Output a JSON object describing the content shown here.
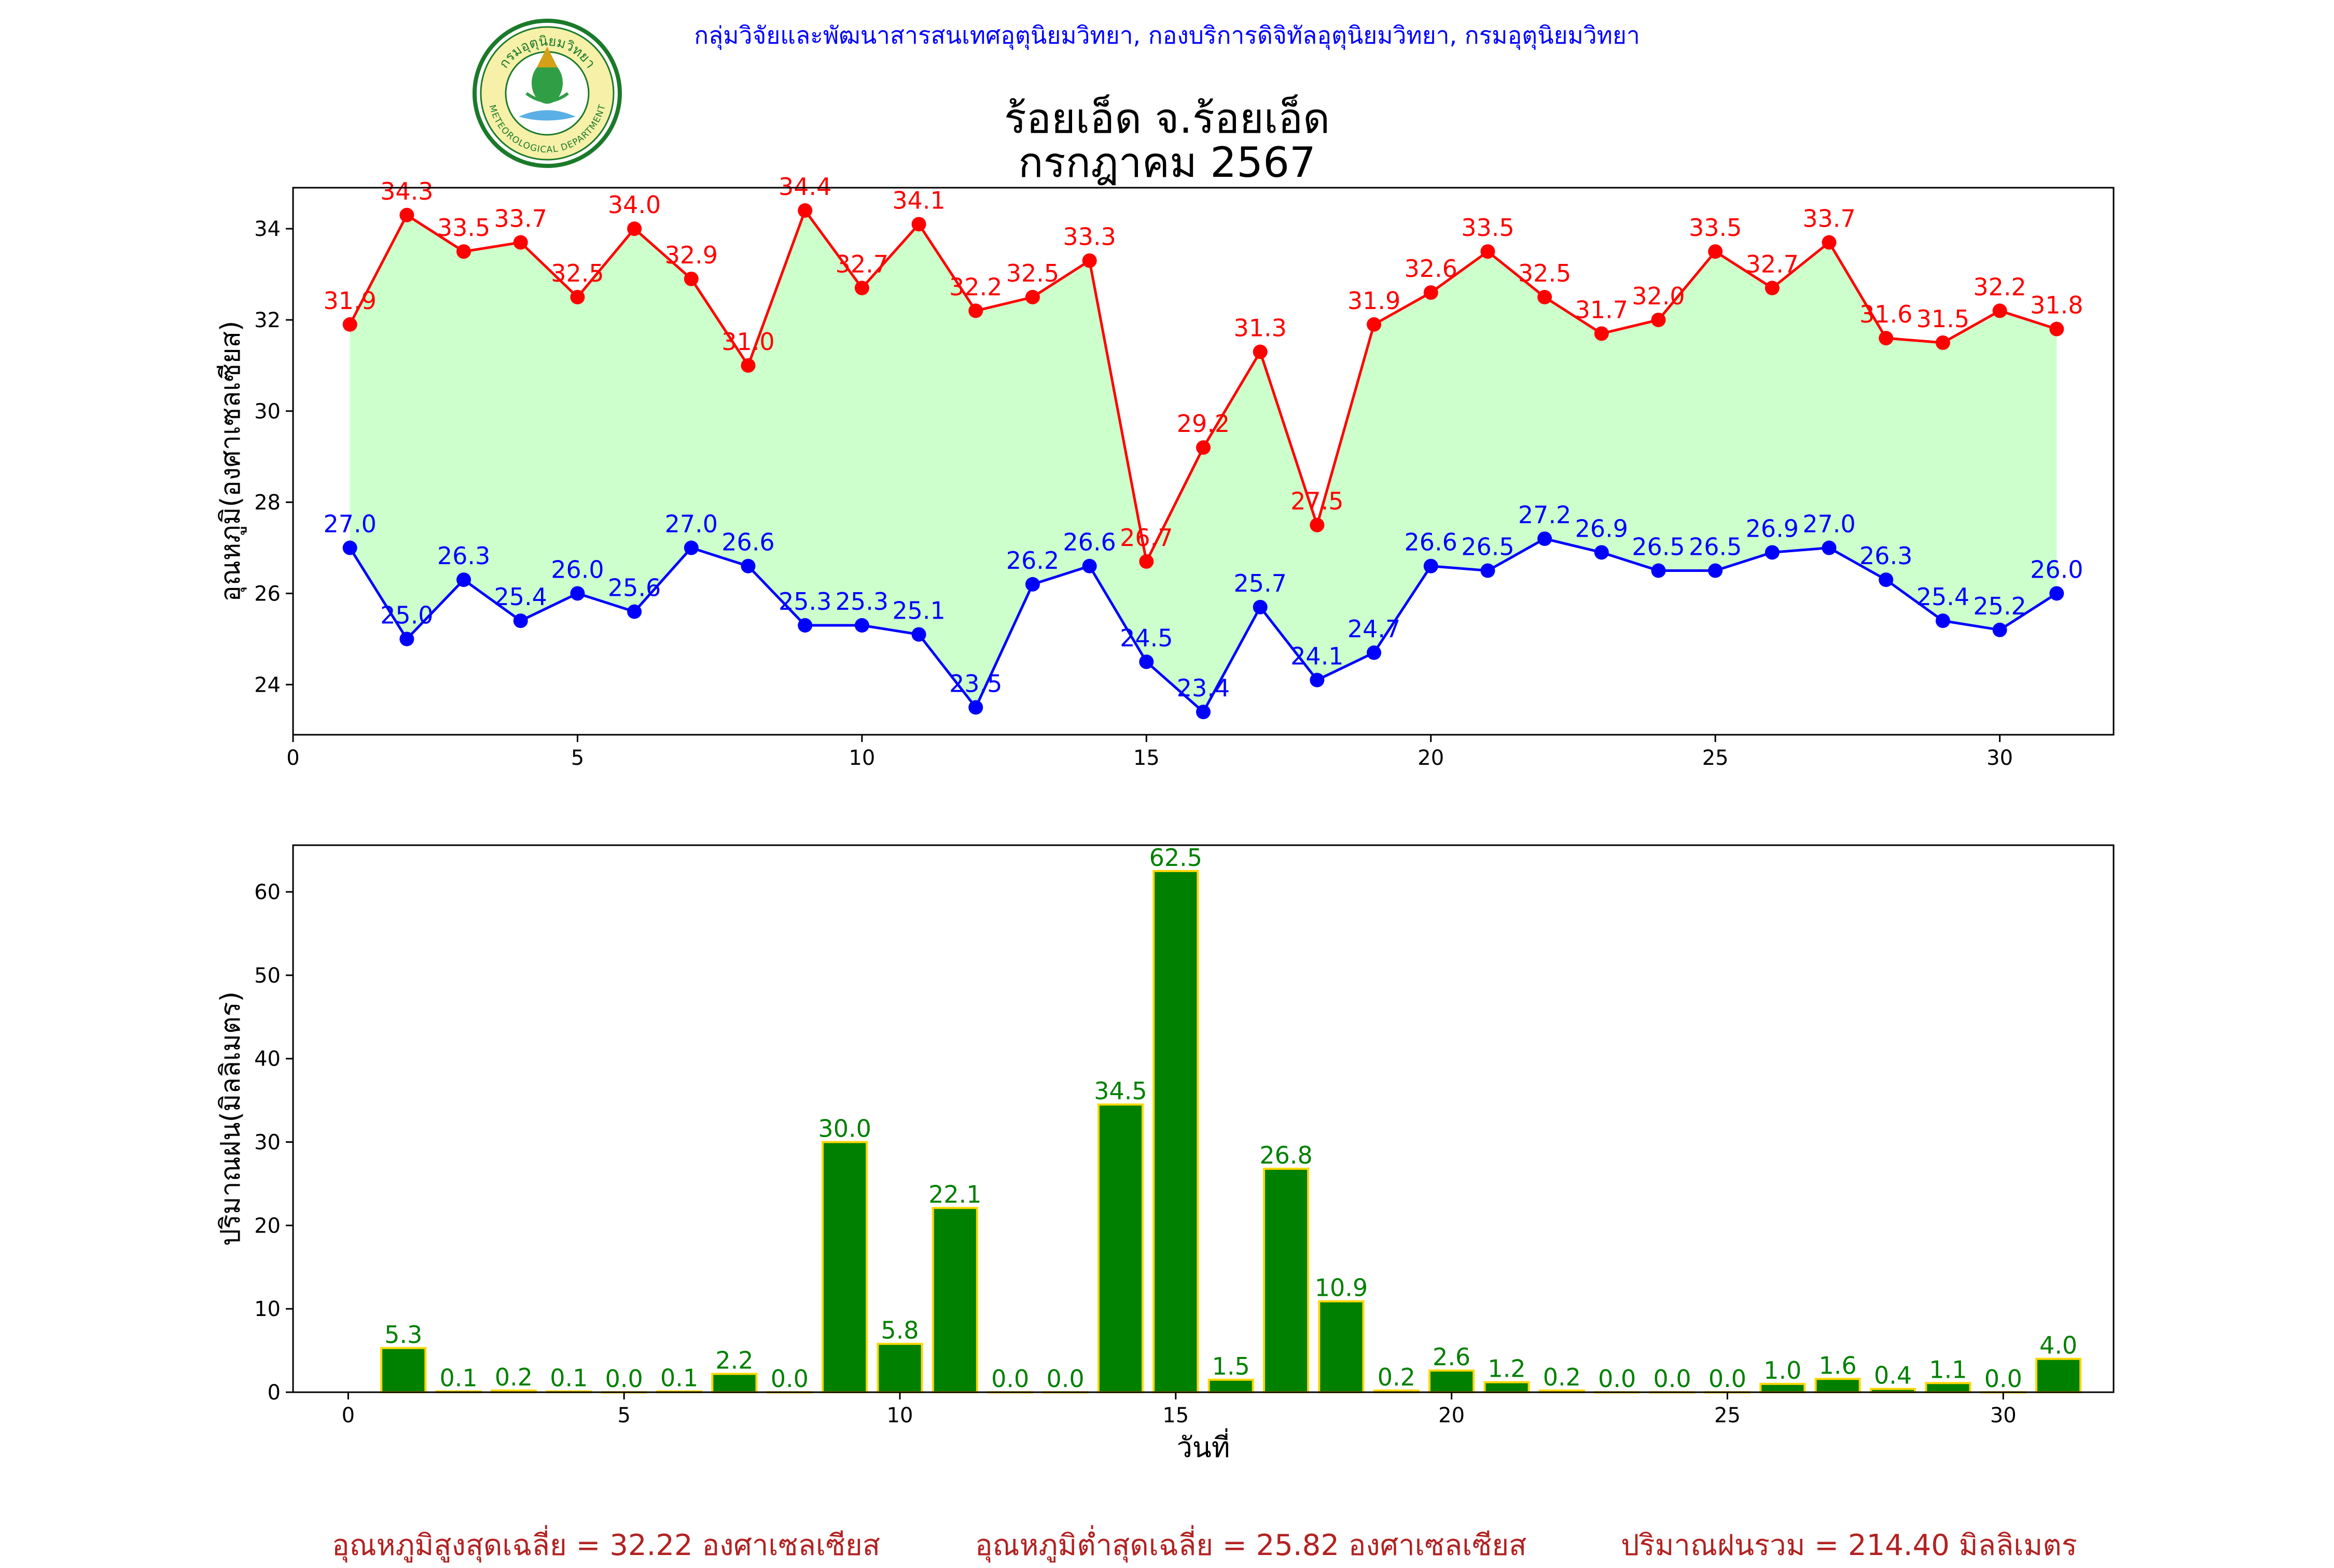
{
  "header": {
    "org_line": "กลุ่มวิจัยและพัฒนาสารสนเทศอุตุนิยมวิทยา, กองบริการดิจิทัลอุตุนิยมวิทยา, กรมอุตุนิยมวิทยา",
    "title_line1": "ร้อยเอ็ด จ.ร้อยเอ็ด",
    "title_line2": "กรกฎาคม 2567",
    "logo": {
      "icon": "meteorological-department-seal-icon",
      "text": "กรมอุตุนิยมวิทยา",
      "subtext": "METEOROLOGICAL DEPARTMENT"
    }
  },
  "chart_data": [
    {
      "type": "line",
      "ylabel": "อุณหภูมิ(องศาเซลเซียส)",
      "xlabel": "",
      "xlim": [
        0,
        32
      ],
      "ylim": [
        22.9,
        34.9
      ],
      "xticks": [
        0,
        5,
        10,
        15,
        20,
        25,
        30
      ],
      "yticks": [
        24,
        26,
        28,
        30,
        32,
        34
      ],
      "x": [
        1,
        2,
        3,
        4,
        5,
        6,
        7,
        8,
        9,
        10,
        11,
        12,
        13,
        14,
        15,
        16,
        17,
        18,
        19,
        20,
        21,
        22,
        23,
        24,
        25,
        26,
        27,
        28,
        29,
        30,
        31
      ],
      "fill_between": {
        "color": "#ccffcc"
      },
      "series": [
        {
          "key": "max",
          "color": "#ff0000",
          "values": [
            31.9,
            34.3,
            33.5,
            33.7,
            32.5,
            34.0,
            32.9,
            31.0,
            34.4,
            32.7,
            34.1,
            32.2,
            32.5,
            33.3,
            26.7,
            29.2,
            31.3,
            27.5,
            31.9,
            32.6,
            33.5,
            32.5,
            31.7,
            32.0,
            33.5,
            32.7,
            33.7,
            31.6,
            31.5,
            32.2,
            31.8
          ]
        },
        {
          "key": "min",
          "color": "#0000ff",
          "values": [
            27.0,
            25.0,
            26.3,
            25.4,
            26.0,
            25.6,
            27.0,
            26.6,
            25.3,
            25.3,
            25.1,
            23.5,
            26.2,
            26.6,
            24.5,
            23.4,
            25.7,
            24.1,
            24.7,
            26.6,
            26.5,
            27.2,
            26.9,
            26.5,
            26.5,
            26.9,
            27.0,
            26.3,
            25.4,
            25.2,
            26.0
          ]
        }
      ]
    },
    {
      "type": "bar",
      "ylabel": "ปริมาณฝน(มิลลิเมตร)",
      "xlabel": "วันที่",
      "xlim": [
        -1,
        32
      ],
      "ylim": [
        0,
        65.6
      ],
      "xticks": [
        0,
        5,
        10,
        15,
        20,
        25,
        30
      ],
      "yticks": [
        0,
        10,
        20,
        30,
        40,
        50,
        60
      ],
      "bar_color": "#008000",
      "bar_edge_color": "#ffd700",
      "label_color": "#008000",
      "x": [
        1,
        2,
        3,
        4,
        5,
        6,
        7,
        8,
        9,
        10,
        11,
        12,
        13,
        14,
        15,
        16,
        17,
        18,
        19,
        20,
        21,
        22,
        23,
        24,
        25,
        26,
        27,
        28,
        29,
        30,
        31
      ],
      "values": [
        5.3,
        0.1,
        0.2,
        0.1,
        0.0,
        0.1,
        2.2,
        0.0,
        30.0,
        5.8,
        22.1,
        0.0,
        0.0,
        34.5,
        62.5,
        1.5,
        26.8,
        10.9,
        0.2,
        2.6,
        1.2,
        0.2,
        0.0,
        0.0,
        0.0,
        1.0,
        1.6,
        0.4,
        1.1,
        0.0,
        4.0
      ]
    }
  ],
  "summary": {
    "avg_max": "อุณหภูมิสูงสุดเฉลี่ย = 32.22 องศาเซลเซียส",
    "avg_min": "อุณหภูมิต่ำสุดเฉลี่ย = 25.82 องศาเซลเซียส",
    "total_rain": "ปริมาณฝนรวม = 214.40 มิลลิเมตร"
  }
}
